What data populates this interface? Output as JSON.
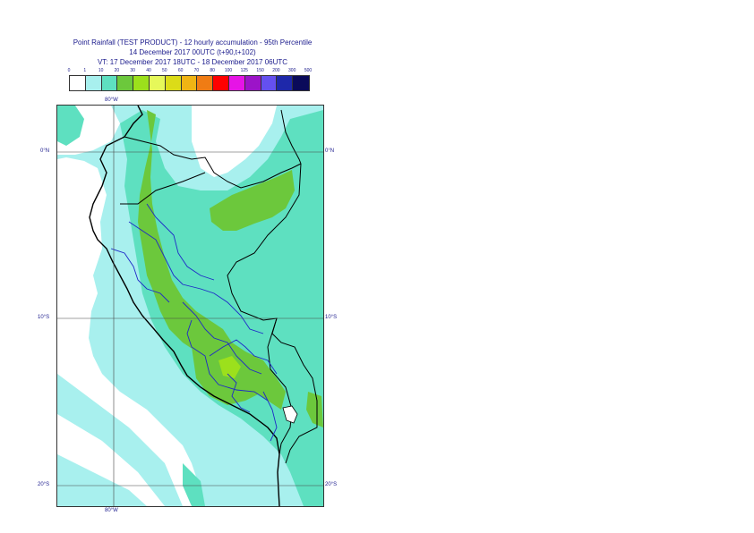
{
  "title": {
    "line1": "Point Rainfall (TEST PRODUCT) - 12 hourly accumulation - 95th Percentile",
    "line2": "14 December 2017 00UTC (t+90,t+102)",
    "line3": "VT: 17 December 2017 18UTC - 18 December 2017 06UTC"
  },
  "legend": {
    "thresholds": [
      "0",
      "1",
      "10",
      "20",
      "30",
      "40",
      "50",
      "60",
      "70",
      "80",
      "100",
      "125",
      "150",
      "200",
      "300",
      "500"
    ],
    "colors": [
      "#ffffff",
      "#a8f0ee",
      "#5ee0c0",
      "#6cc83c",
      "#9ce01c",
      "#e6f85a",
      "#dcdc18",
      "#f0b414",
      "#f07c14",
      "#ff0000",
      "#e614e6",
      "#9c14c8",
      "#6450f0",
      "#1e28aa",
      "#0a0a5a"
    ]
  },
  "map": {
    "background_colors": {
      "light": "#a8f0ee",
      "medium": "#5ee0c0",
      "heavy": "#6cc83c",
      "heavier": "#9ce01c"
    },
    "axis": {
      "top_lon": "80°W",
      "bottom_lon": "80°W",
      "lat_0_left": "0°N",
      "lat_0_right": "0°N",
      "lat_10_left": "10°S",
      "lat_10_right": "10°S",
      "lat_20_left": "20°S",
      "lat_20_right": "20°S"
    }
  }
}
